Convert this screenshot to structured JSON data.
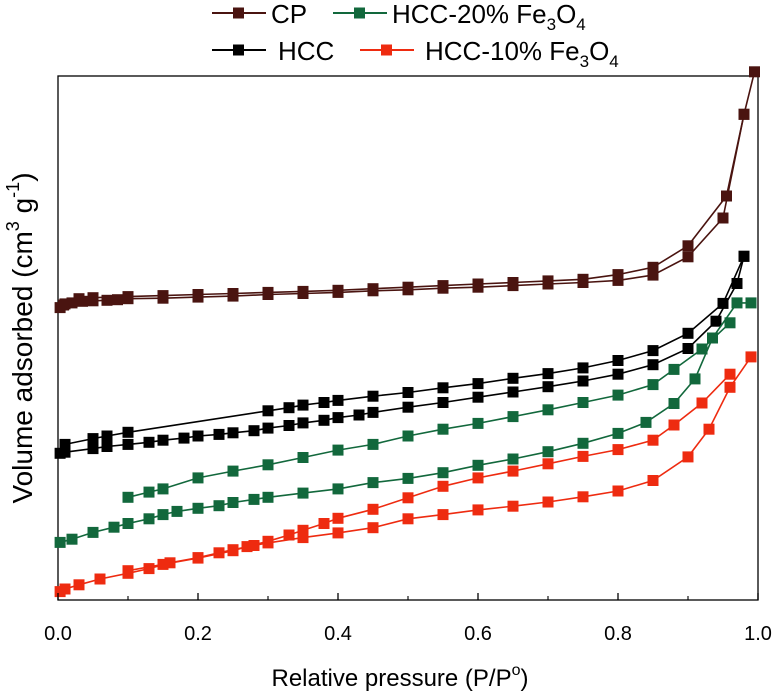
{
  "chart_data": {
    "type": "scatter",
    "title": "",
    "xlabel": "Relative pressure (P/P",
    "xlabel_sup": "o",
    "xlabel_end": ")",
    "ylabel_main": "Volume adsorbed (cm",
    "ylabel_sup1": "3",
    "ylabel_mid": " g",
    "ylabel_sup2": "-1",
    "ylabel_end": ")",
    "xlim": [
      0.0,
      1.0
    ],
    "ylim": [
      0,
      100
    ],
    "x_ticks": [
      "0.0",
      "0.2",
      "0.4",
      "0.6",
      "0.8",
      "1.0"
    ],
    "y_ticks_shown": false,
    "legend": {
      "placement": "top, outside plot",
      "entries": [
        {
          "name": "CP",
          "color": "#4a1410"
        },
        {
          "name": "HCC-20% Fe",
          "sub1": "3",
          "mid": "O",
          "sub2": "4",
          "color": "#12683c"
        },
        {
          "name": "HCC",
          "color": "#000000"
        },
        {
          "name": "HCC-10% Fe",
          "sub1": "3",
          "mid": "O",
          "sub2": "4",
          "color": "#ee2b10"
        }
      ]
    },
    "series": [
      {
        "name": "CP",
        "color": "#4a1410",
        "adsorption": [
          [
            0.003,
            55.8
          ],
          [
            0.008,
            56.3
          ],
          [
            0.02,
            56.7
          ],
          [
            0.035,
            57.0
          ],
          [
            0.05,
            57.1
          ],
          [
            0.07,
            57.2
          ],
          [
            0.085,
            57.3
          ],
          [
            0.1,
            57.5
          ],
          [
            0.15,
            57.6
          ],
          [
            0.2,
            57.8
          ],
          [
            0.25,
            58.0
          ],
          [
            0.3,
            58.3
          ],
          [
            0.35,
            58.5
          ],
          [
            0.4,
            58.7
          ],
          [
            0.45,
            59.0
          ],
          [
            0.5,
            59.2
          ],
          [
            0.55,
            59.5
          ],
          [
            0.6,
            59.7
          ],
          [
            0.65,
            60.0
          ],
          [
            0.7,
            60.3
          ],
          [
            0.75,
            60.6
          ],
          [
            0.8,
            61.0
          ],
          [
            0.85,
            62.0
          ],
          [
            0.9,
            65.5
          ],
          [
            0.95,
            72.9
          ],
          [
            0.98,
            92.7
          ],
          [
            0.995,
            100.8
          ]
        ],
        "desorption": [
          [
            0.98,
            92.7
          ],
          [
            0.955,
            77.1
          ],
          [
            0.9,
            67.6
          ],
          [
            0.85,
            63.5
          ],
          [
            0.8,
            62.1
          ],
          [
            0.75,
            61.2
          ],
          [
            0.7,
            60.9
          ],
          [
            0.65,
            60.6
          ],
          [
            0.6,
            60.3
          ],
          [
            0.55,
            60.0
          ],
          [
            0.5,
            59.7
          ],
          [
            0.45,
            59.4
          ],
          [
            0.4,
            59.1
          ],
          [
            0.35,
            58.9
          ],
          [
            0.3,
            58.7
          ],
          [
            0.25,
            58.5
          ],
          [
            0.2,
            58.3
          ],
          [
            0.15,
            58.1
          ],
          [
            0.1,
            57.9
          ],
          [
            0.05,
            57.7
          ],
          [
            0.03,
            57.5
          ],
          [
            0.01,
            56.5
          ]
        ]
      },
      {
        "name": "HCC",
        "color": "#000000",
        "adsorption": [
          [
            0.003,
            28.0
          ],
          [
            0.01,
            28.2
          ],
          [
            0.05,
            28.9
          ],
          [
            0.07,
            29.3
          ],
          [
            0.1,
            29.7
          ],
          [
            0.13,
            30.1
          ],
          [
            0.15,
            30.5
          ],
          [
            0.18,
            30.9
          ],
          [
            0.2,
            31.3
          ],
          [
            0.23,
            31.6
          ],
          [
            0.25,
            31.9
          ],
          [
            0.28,
            32.3
          ],
          [
            0.3,
            32.8
          ],
          [
            0.33,
            33.3
          ],
          [
            0.35,
            33.8
          ],
          [
            0.38,
            34.3
          ],
          [
            0.4,
            34.8
          ],
          [
            0.43,
            35.3
          ],
          [
            0.45,
            35.8
          ],
          [
            0.5,
            36.8
          ],
          [
            0.55,
            37.7
          ],
          [
            0.6,
            38.7
          ],
          [
            0.65,
            39.7
          ],
          [
            0.7,
            40.7
          ],
          [
            0.75,
            41.8
          ],
          [
            0.8,
            43.1
          ],
          [
            0.85,
            44.9
          ],
          [
            0.9,
            48.0
          ],
          [
            0.94,
            53.2
          ],
          [
            0.97,
            60.4
          ],
          [
            0.98,
            65.6
          ]
        ],
        "desorption": [
          [
            0.98,
            65.6
          ],
          [
            0.95,
            56.6
          ],
          [
            0.9,
            50.9
          ],
          [
            0.85,
            47.6
          ],
          [
            0.8,
            45.7
          ],
          [
            0.75,
            44.3
          ],
          [
            0.7,
            43.2
          ],
          [
            0.65,
            42.3
          ],
          [
            0.6,
            41.3
          ],
          [
            0.55,
            40.5
          ],
          [
            0.5,
            39.6
          ],
          [
            0.45,
            38.9
          ],
          [
            0.4,
            38.1
          ],
          [
            0.38,
            37.7
          ],
          [
            0.35,
            37.2
          ],
          [
            0.33,
            36.7
          ],
          [
            0.3,
            36.1
          ],
          [
            0.1,
            32.0
          ],
          [
            0.07,
            31.3
          ],
          [
            0.05,
            30.8
          ],
          [
            0.01,
            29.7
          ]
        ]
      },
      {
        "name": "HCC-20% Fe3O4",
        "color": "#12683c",
        "adsorption": [
          [
            0.003,
            11.0
          ],
          [
            0.02,
            11.6
          ],
          [
            0.05,
            12.9
          ],
          [
            0.08,
            13.9
          ],
          [
            0.1,
            14.6
          ],
          [
            0.13,
            15.5
          ],
          [
            0.15,
            16.3
          ],
          [
            0.17,
            16.9
          ],
          [
            0.2,
            17.5
          ],
          [
            0.23,
            18.0
          ],
          [
            0.25,
            18.6
          ],
          [
            0.28,
            19.2
          ],
          [
            0.3,
            19.6
          ],
          [
            0.35,
            20.4
          ],
          [
            0.4,
            21.2
          ],
          [
            0.45,
            22.4
          ],
          [
            0.5,
            23.2
          ],
          [
            0.55,
            24.3
          ],
          [
            0.6,
            25.7
          ],
          [
            0.65,
            26.9
          ],
          [
            0.7,
            28.3
          ],
          [
            0.75,
            29.9
          ],
          [
            0.8,
            31.8
          ],
          [
            0.84,
            33.9
          ],
          [
            0.88,
            37.5
          ],
          [
            0.91,
            42.2
          ],
          [
            0.935,
            50.0
          ],
          [
            0.97,
            56.7
          ],
          [
            0.99,
            56.7
          ]
        ],
        "desorption": [
          [
            0.96,
            52.9
          ],
          [
            0.92,
            47.9
          ],
          [
            0.88,
            44.0
          ],
          [
            0.85,
            41.1
          ],
          [
            0.8,
            39.1
          ],
          [
            0.75,
            37.7
          ],
          [
            0.7,
            36.3
          ],
          [
            0.65,
            35.0
          ],
          [
            0.6,
            33.7
          ],
          [
            0.55,
            32.6
          ],
          [
            0.5,
            31.3
          ],
          [
            0.45,
            29.7
          ],
          [
            0.4,
            28.6
          ],
          [
            0.35,
            27.2
          ],
          [
            0.3,
            25.8
          ],
          [
            0.25,
            24.6
          ],
          [
            0.2,
            23.3
          ],
          [
            0.15,
            21.2
          ],
          [
            0.13,
            20.6
          ],
          [
            0.1,
            19.6
          ]
        ]
      },
      {
        "name": "HCC-10% Fe3O4",
        "color": "#ee2b10",
        "adsorption": [
          [
            0.003,
            1.6
          ],
          [
            0.01,
            2.1
          ],
          [
            0.03,
            2.9
          ],
          [
            0.06,
            4.0
          ],
          [
            0.1,
            5.1
          ],
          [
            0.13,
            6.0
          ],
          [
            0.16,
            7.1
          ],
          [
            0.2,
            8.1
          ],
          [
            0.23,
            9.0
          ],
          [
            0.25,
            9.6
          ],
          [
            0.28,
            10.4
          ],
          [
            0.3,
            10.9
          ],
          [
            0.35,
            11.9
          ],
          [
            0.4,
            12.8
          ],
          [
            0.45,
            13.8
          ],
          [
            0.5,
            15.5
          ],
          [
            0.55,
            16.3
          ],
          [
            0.6,
            17.2
          ],
          [
            0.65,
            17.9
          ],
          [
            0.7,
            18.7
          ],
          [
            0.75,
            19.7
          ],
          [
            0.8,
            20.8
          ],
          [
            0.85,
            22.8
          ],
          [
            0.9,
            27.3
          ],
          [
            0.93,
            32.6
          ],
          [
            0.96,
            40.6
          ],
          [
            0.99,
            46.4
          ]
        ],
        "desorption": [
          [
            0.96,
            43.1
          ],
          [
            0.92,
            37.6
          ],
          [
            0.88,
            33.4
          ],
          [
            0.85,
            30.5
          ],
          [
            0.8,
            28.7
          ],
          [
            0.75,
            27.4
          ],
          [
            0.7,
            26.0
          ],
          [
            0.65,
            24.6
          ],
          [
            0.6,
            23.3
          ],
          [
            0.55,
            21.7
          ],
          [
            0.5,
            19.5
          ],
          [
            0.45,
            17.3
          ],
          [
            0.4,
            15.6
          ],
          [
            0.38,
            14.6
          ],
          [
            0.35,
            13.3
          ],
          [
            0.33,
            12.4
          ],
          [
            0.3,
            11.2
          ],
          [
            0.27,
            10.2
          ],
          [
            0.25,
            9.4
          ],
          [
            0.2,
            8.0
          ],
          [
            0.15,
            6.8
          ],
          [
            0.1,
            5.6
          ]
        ]
      }
    ]
  }
}
